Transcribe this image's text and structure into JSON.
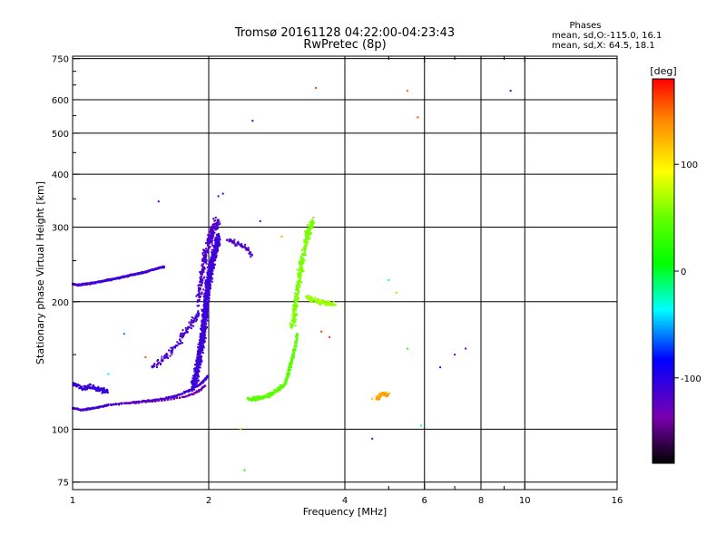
{
  "chart_data": {
    "type": "scatter",
    "title": "Tromsø 20161128 04:22:00-04:23:43",
    "subtitle": "RwPretec (8p)",
    "xlabel": "Frequency [MHz]",
    "ylabel": "Stationary phase Virtual Height [km]",
    "x_scale": "log",
    "y_scale": "log",
    "xlim": [
      1,
      16
    ],
    "ylim": [
      72,
      760
    ],
    "x_ticks": [
      1,
      2,
      4,
      6,
      8,
      10,
      16
    ],
    "x_tick_labels": [
      "1",
      "2",
      "4",
      "6",
      "8",
      "10",
      "16"
    ],
    "x_grid": [
      2,
      4,
      6,
      8,
      10
    ],
    "x_minor": [
      5,
      7,
      9
    ],
    "y_ticks": [
      75,
      100,
      200,
      300,
      400,
      500,
      600,
      750
    ],
    "y_tick_labels": [
      "75",
      "100",
      "200",
      "300",
      "400",
      "500",
      "600",
      "750"
    ],
    "grid": true,
    "phases_box": {
      "title": "Phases",
      "line_o": "mean, sd,O:-115.0, 16.1",
      "line_x": "mean, sd,X:  64.5, 18.1"
    },
    "colorbar": {
      "label": "[deg]",
      "range": [
        -180,
        180
      ],
      "ticks": [
        100,
        0,
        -100
      ],
      "tick_labels": [
        "100",
        "0",
        "-100"
      ]
    },
    "traces": [
      {
        "kind": "curve",
        "x": [
          1.0,
          1.03,
          1.06,
          1.1,
          1.15,
          1.2,
          1.25,
          1.3,
          1.35,
          1.4,
          1.45,
          1.5,
          1.55,
          1.6
        ],
        "y": [
          220,
          219,
          220,
          221,
          223,
          225,
          227,
          229,
          231,
          233,
          235,
          238,
          240,
          242
        ],
        "phase": -112,
        "count": 5,
        "sx": 0.004,
        "sy": 0.006
      },
      {
        "kind": "curve",
        "x": [
          1.0,
          1.05,
          1.1,
          1.15,
          1.2,
          1.3,
          1.4,
          1.5,
          1.6,
          1.7,
          1.8,
          1.9,
          1.95,
          2.0
        ],
        "y": [
          112,
          111,
          112,
          113,
          114,
          115,
          116,
          117,
          118,
          120,
          123,
          127,
          130,
          134
        ],
        "phase": -112,
        "count": 5,
        "sx": 0.004,
        "sy": 0.006
      },
      {
        "kind": "curve",
        "x": [
          1.3,
          1.45,
          1.6,
          1.75,
          1.85,
          1.92,
          1.97
        ],
        "y": [
          115,
          116,
          117,
          119,
          121,
          124,
          127
        ],
        "phase": -135,
        "count": 3,
        "sx": 0.004,
        "sy": 0.005
      },
      {
        "kind": "curve",
        "x": [
          1.85,
          1.88,
          1.9,
          1.92,
          1.94,
          1.95,
          1.96,
          1.97,
          1.98,
          1.99,
          2.0,
          2.02,
          2.05,
          2.08,
          2.1
        ],
        "y": [
          125,
          135,
          145,
          155,
          165,
          175,
          185,
          195,
          205,
          215,
          225,
          240,
          255,
          270,
          285
        ],
        "phase": -110,
        "count": 14,
        "sx": 0.02,
        "sy": 0.04
      },
      {
        "kind": "curve",
        "x": [
          1.9,
          1.93,
          1.96,
          2.0,
          2.03,
          2.06,
          2.1
        ],
        "y": [
          200,
          230,
          255,
          275,
          290,
          300,
          310
        ],
        "phase": -118,
        "count": 8,
        "sx": 0.018,
        "sy": 0.05
      },
      {
        "kind": "curve",
        "x": [
          1.0,
          1.05,
          1.1,
          1.15,
          1.2
        ],
        "y": [
          128,
          125,
          126,
          124,
          123
        ],
        "phase": -108,
        "count": 6,
        "sx": 0.01,
        "sy": 0.02
      },
      {
        "kind": "curve",
        "x": [
          1.5,
          1.6,
          1.7,
          1.78,
          1.85,
          1.9
        ],
        "y": [
          140,
          148,
          158,
          170,
          180,
          190
        ],
        "phase": -115,
        "count": 4,
        "sx": 0.02,
        "sy": 0.02
      },
      {
        "kind": "curve",
        "x": [
          2.2,
          2.3,
          2.4,
          2.5
        ],
        "y": [
          280,
          275,
          270,
          255
        ],
        "phase": -118,
        "count": 3,
        "sx": 0.01,
        "sy": 0.02
      },
      {
        "kind": "curve",
        "x": [
          2.45,
          2.55,
          2.65,
          2.75,
          2.85,
          2.95,
          3.0,
          3.05,
          3.1,
          3.15
        ],
        "y": [
          118,
          118,
          119,
          121,
          124,
          128,
          135,
          145,
          155,
          170
        ],
        "phase": 45,
        "count": 6,
        "sx": 0.01,
        "sy": 0.015
      },
      {
        "kind": "curve",
        "x": [
          3.05,
          3.1,
          3.12,
          3.15,
          3.18,
          3.2,
          3.25,
          3.3,
          3.35,
          3.4
        ],
        "y": [
          175,
          185,
          200,
          215,
          230,
          245,
          265,
          285,
          300,
          310
        ],
        "phase": 55,
        "count": 6,
        "sx": 0.018,
        "sy": 0.03
      },
      {
        "kind": "curve",
        "x": [
          3.3,
          3.4,
          3.5,
          3.6,
          3.7,
          3.8
        ],
        "y": [
          205,
          202,
          200,
          199,
          198,
          197
        ],
        "phase": 65,
        "count": 4,
        "sx": 0.015,
        "sy": 0.02
      },
      {
        "kind": "curve",
        "x": [
          4.7,
          4.8,
          4.9,
          5.0
        ],
        "y": [
          118,
          120,
          121,
          120
        ],
        "phase": 130,
        "count": 3,
        "sx": 0.01,
        "sy": 0.02
      },
      {
        "kind": "points",
        "x": [
          1.55,
          2.5,
          3.45,
          5.5,
          5.8,
          9.3,
          2.4,
          2.6,
          3.7,
          5.0,
          5.2,
          5.5,
          6.5,
          7.0,
          7.4,
          4.6,
          5.9,
          2.35,
          4.6,
          1.45,
          1.3,
          1.2,
          2.1,
          2.15,
          3.55,
          2.9
        ],
        "y": [
          345,
          535,
          640,
          630,
          545,
          630,
          80,
          310,
          165,
          225,
          210,
          155,
          140,
          150,
          155,
          95,
          102,
          100,
          118,
          148,
          168,
          135,
          355,
          360,
          170,
          285
        ],
        "phases": [
          -120,
          -110,
          160,
          150,
          160,
          -120,
          10,
          -115,
          165,
          -30,
          60,
          30,
          -110,
          -120,
          -125,
          -120,
          -30,
          55,
          120,
          160,
          -60,
          -40,
          -110,
          -115,
          165,
          130
        ]
      }
    ]
  }
}
